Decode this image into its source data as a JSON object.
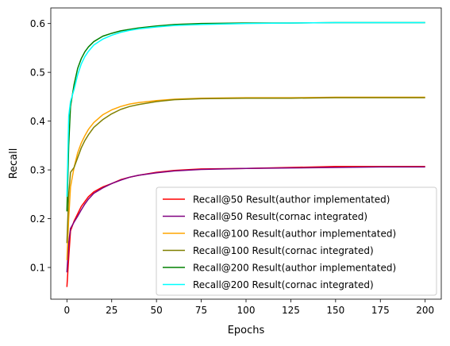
{
  "chart_data": {
    "type": "line",
    "title": "",
    "xlabel": "Epochs",
    "ylabel": "Recall",
    "xlim": [
      -9,
      209
    ],
    "ylim": [
      0.035,
      0.632
    ],
    "xticks": [
      0,
      25,
      50,
      75,
      100,
      125,
      150,
      175,
      200
    ],
    "yticks": [
      0.1,
      0.2,
      0.3,
      0.4,
      0.5,
      0.6
    ],
    "xtick_labels": [
      "0",
      "25",
      "50",
      "75",
      "100",
      "125",
      "150",
      "175",
      "200"
    ],
    "ytick_labels": [
      "0.1",
      "0.2",
      "0.3",
      "0.4",
      "0.5",
      "0.6"
    ],
    "grid": false,
    "legend_position": "lower right",
    "series": [
      {
        "name": "Recall@50 Result(author implementated)",
        "color": "#ff0000",
        "x": [
          0,
          1,
          2,
          4,
          6,
          8,
          10,
          12,
          15,
          20,
          25,
          30,
          35,
          40,
          50,
          60,
          75,
          100,
          125,
          150,
          175,
          200
        ],
        "values": [
          0.06,
          0.12,
          0.175,
          0.195,
          0.21,
          0.225,
          0.235,
          0.245,
          0.255,
          0.265,
          0.272,
          0.28,
          0.285,
          0.289,
          0.295,
          0.299,
          0.302,
          0.303,
          0.305,
          0.307,
          0.307,
          0.307
        ]
      },
      {
        "name": "Recall@50 Result(cornac integrated)",
        "color": "#800080",
        "x": [
          0,
          1,
          2,
          4,
          6,
          8,
          10,
          12,
          15,
          20,
          25,
          30,
          35,
          40,
          50,
          60,
          75,
          100,
          125,
          150,
          175,
          200
        ],
        "values": [
          0.09,
          0.15,
          0.18,
          0.193,
          0.205,
          0.218,
          0.23,
          0.24,
          0.252,
          0.263,
          0.272,
          0.279,
          0.285,
          0.289,
          0.294,
          0.298,
          0.301,
          0.303,
          0.304,
          0.305,
          0.306,
          0.306
        ]
      },
      {
        "name": "Recall@100 Result(author implementated)",
        "color": "#ffa500",
        "x": [
          0,
          1,
          2,
          4,
          6,
          8,
          10,
          12,
          15,
          20,
          25,
          30,
          35,
          40,
          50,
          60,
          75,
          100,
          125,
          150,
          175,
          200
        ],
        "values": [
          0.115,
          0.2,
          0.265,
          0.305,
          0.335,
          0.355,
          0.37,
          0.383,
          0.397,
          0.413,
          0.423,
          0.43,
          0.435,
          0.438,
          0.442,
          0.445,
          0.447,
          0.448,
          0.448,
          0.449,
          0.449,
          0.449
        ]
      },
      {
        "name": "Recall@100 Result(cornac integrated)",
        "color": "#808000",
        "x": [
          0,
          1,
          2,
          4,
          6,
          8,
          10,
          12,
          15,
          20,
          25,
          30,
          35,
          40,
          50,
          60,
          75,
          100,
          125,
          150,
          175,
          200
        ],
        "values": [
          0.15,
          0.25,
          0.295,
          0.305,
          0.325,
          0.345,
          0.36,
          0.372,
          0.387,
          0.403,
          0.415,
          0.424,
          0.43,
          0.434,
          0.44,
          0.444,
          0.446,
          0.447,
          0.447,
          0.448,
          0.448,
          0.448
        ]
      },
      {
        "name": "Recall@200 Result(author implementated)",
        "color": "#008000",
        "x": [
          0,
          1,
          2,
          4,
          6,
          8,
          10,
          12,
          15,
          20,
          25,
          30,
          35,
          40,
          50,
          60,
          75,
          100,
          125,
          150,
          175,
          200
        ],
        "values": [
          0.215,
          0.35,
          0.43,
          0.475,
          0.508,
          0.528,
          0.542,
          0.552,
          0.563,
          0.574,
          0.58,
          0.585,
          0.588,
          0.591,
          0.595,
          0.598,
          0.6,
          0.601,
          0.601,
          0.602,
          0.602,
          0.602
        ]
      },
      {
        "name": "Recall@200 Result(cornac integrated)",
        "color": "#00ffff",
        "x": [
          0,
          1,
          2,
          4,
          6,
          8,
          10,
          12,
          15,
          20,
          25,
          30,
          35,
          40,
          50,
          60,
          75,
          100,
          125,
          150,
          175,
          200
        ],
        "values": [
          0.245,
          0.41,
          0.44,
          0.465,
          0.495,
          0.517,
          0.532,
          0.543,
          0.556,
          0.568,
          0.576,
          0.582,
          0.586,
          0.589,
          0.593,
          0.596,
          0.598,
          0.6,
          0.601,
          0.602,
          0.602,
          0.602
        ]
      }
    ]
  }
}
